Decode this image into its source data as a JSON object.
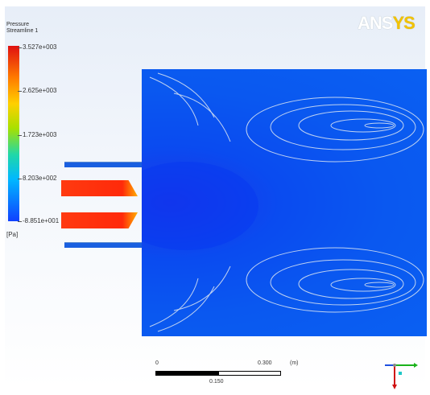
{
  "legend": {
    "title_line1": "Pressure",
    "title_line2": "Streamline 1",
    "labels": [
      "3.527e+003",
      "2.625e+003",
      "1.723e+003",
      "8.203e+002",
      "-8.851e+001"
    ],
    "unit": "[Pa]"
  },
  "logo": {
    "part1": "ANS",
    "part2": "YS"
  },
  "scale": {
    "start": "0",
    "end": "0.300",
    "unit": "(m)",
    "mid": "0.150"
  },
  "colors": {
    "high": "#e01010",
    "mid": "#ffd000",
    "low": "#1040ff",
    "domain": "#0a58f0"
  },
  "icons": {
    "axis_triad": "xyz-axis-triad"
  }
}
